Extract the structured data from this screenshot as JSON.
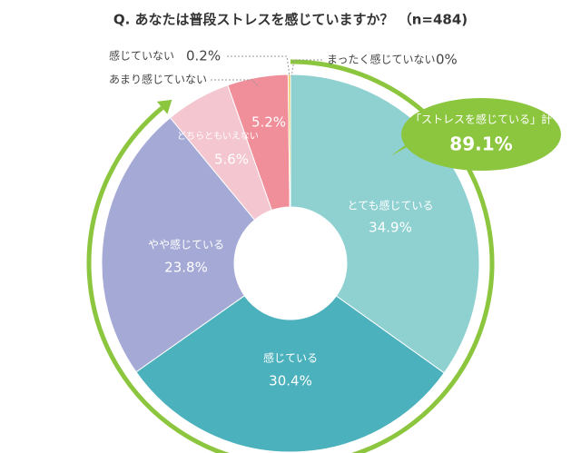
{
  "chart_data": {
    "type": "donut",
    "title": "Q. あなたは普段ストレスを感じていますか？ （n=484)",
    "categories": [
      "とても感じている",
      "感じている",
      "やや感じている",
      "どちらともいえない",
      "あまり感じていない",
      "感じていない",
      "まったく感じていない"
    ],
    "values": [
      34.9,
      30.4,
      23.8,
      5.6,
      5.2,
      0.2,
      0
    ],
    "value_labels": [
      "34.9%",
      "30.4%",
      "23.8%",
      "5.6%",
      "5.2%",
      "0.2%",
      "0%"
    ],
    "colors": [
      "#8fd0d1",
      "#4bb1bd",
      "#a4a9d6",
      "#f3c6d0",
      "#f08e9a",
      "#e8c65a",
      "#cccccc"
    ],
    "annotation": {
      "text": "「ストレスを感じている」計",
      "value_label": "89.1%",
      "color": "#8cc63f"
    }
  }
}
